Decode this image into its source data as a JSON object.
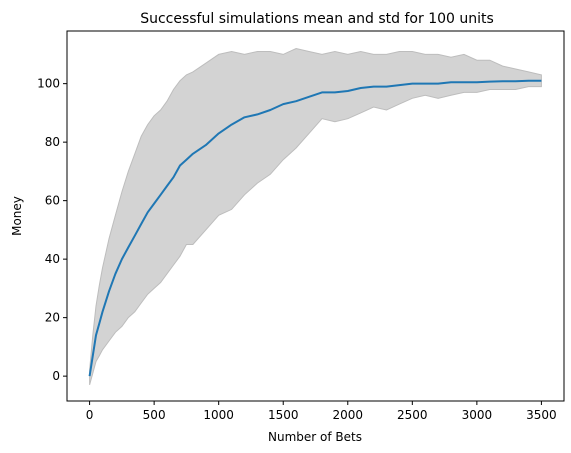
{
  "chart_data": {
    "type": "line",
    "title": "Successful simulations mean and std for 100 units",
    "xlabel": "Number of Bets",
    "ylabel": "Money",
    "xlim": [
      -175,
      3675
    ],
    "ylim": [
      -8.5,
      118
    ],
    "xticks": [
      0,
      500,
      1000,
      1500,
      2000,
      2500,
      3000,
      3500
    ],
    "yticks": [
      0,
      20,
      40,
      60,
      80,
      100
    ],
    "grid": false,
    "colors": {
      "mean": "#1f77b4",
      "band": "#d3d3d3",
      "band_edge": "#bdbdbd"
    },
    "series": [
      {
        "kind": "mean",
        "x": [
          0,
          25,
          50,
          75,
          100,
          150,
          200,
          250,
          300,
          350,
          400,
          450,
          500,
          550,
          600,
          650,
          700,
          750,
          800,
          900,
          1000,
          1100,
          1200,
          1300,
          1400,
          1500,
          1600,
          1700,
          1800,
          1900,
          2000,
          2100,
          2200,
          2300,
          2400,
          2500,
          2600,
          2700,
          2800,
          2900,
          3000,
          3100,
          3200,
          3300,
          3400,
          3500
        ],
        "y": [
          0,
          7,
          14,
          18,
          22,
          29,
          35,
          40,
          44,
          48,
          52,
          56,
          59,
          62,
          65,
          68,
          72,
          74,
          76,
          79,
          83,
          86,
          88.5,
          89.5,
          91,
          93,
          94,
          95.5,
          97,
          97,
          97.5,
          98.5,
          99,
          99,
          99.5,
          100,
          100,
          100,
          100.5,
          100.5,
          100.5,
          100.7,
          100.8,
          100.8,
          101,
          101
        ]
      },
      {
        "kind": "std-band",
        "x": [
          0,
          25,
          50,
          75,
          100,
          150,
          200,
          250,
          300,
          350,
          400,
          450,
          500,
          550,
          600,
          650,
          700,
          750,
          800,
          900,
          1000,
          1100,
          1200,
          1300,
          1400,
          1500,
          1600,
          1700,
          1800,
          1900,
          2000,
          2100,
          2200,
          2300,
          2400,
          2500,
          2600,
          2700,
          2800,
          2900,
          3000,
          3100,
          3200,
          3300,
          3400,
          3500
        ],
        "upper": [
          2,
          14,
          24,
          31,
          37,
          47,
          55,
          63,
          70,
          76,
          82,
          86,
          89,
          91,
          94,
          98,
          101,
          103,
          104,
          107,
          110,
          111,
          110,
          111,
          111,
          110,
          112,
          111,
          110,
          111,
          110,
          111,
          110,
          110,
          111,
          111,
          110,
          110,
          109,
          110,
          108,
          108,
          106,
          105,
          104,
          103
        ],
        "lower": [
          -3,
          1,
          5,
          7,
          9,
          12,
          15,
          17,
          20,
          22,
          25,
          28,
          30,
          32,
          35,
          38,
          41,
          45,
          45,
          50,
          55,
          57,
          62,
          66,
          69,
          74,
          78,
          83,
          88,
          87,
          88,
          90,
          92,
          91,
          93,
          95,
          96,
          95,
          96,
          97,
          97,
          98,
          98,
          98,
          99,
          99
        ]
      }
    ]
  }
}
